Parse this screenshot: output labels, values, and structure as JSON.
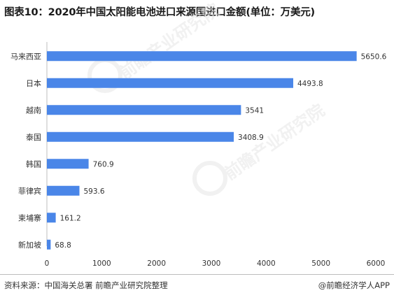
{
  "title": "图表10：2020年中国太阳能电池进口来源国进口金额(单位：万美元)",
  "chart_data": {
    "type": "bar",
    "orientation": "horizontal",
    "title": "图表10：2020年中国太阳能电池进口来源国进口金额(单位：万美元)",
    "categories": [
      "马来西亚",
      "日本",
      "越南",
      "泰国",
      "韩国",
      "菲律宾",
      "柬埔寨",
      "新加坡"
    ],
    "values": [
      5650.6,
      4493.8,
      3541,
      3408.9,
      760.9,
      593.6,
      161.2,
      68.8
    ],
    "value_labels": [
      "5650.6",
      "4493.8",
      "3541",
      "3408.9",
      "760.9",
      "593.6",
      "161.2",
      "68.8"
    ],
    "xlim": [
      0,
      6000
    ],
    "xticks": [
      "0",
      "1000",
      "2000",
      "3000",
      "4000",
      "5000",
      "6000"
    ],
    "grid": false,
    "bar_color": "#4a86e8"
  },
  "watermark": {
    "text": "前瞻产业研究院",
    "color": "#e6e6e6"
  },
  "footer": {
    "source": "资料来源：中国海关总署 前瞻产业研究院整理",
    "brand": "@前瞻经济学人APP"
  }
}
